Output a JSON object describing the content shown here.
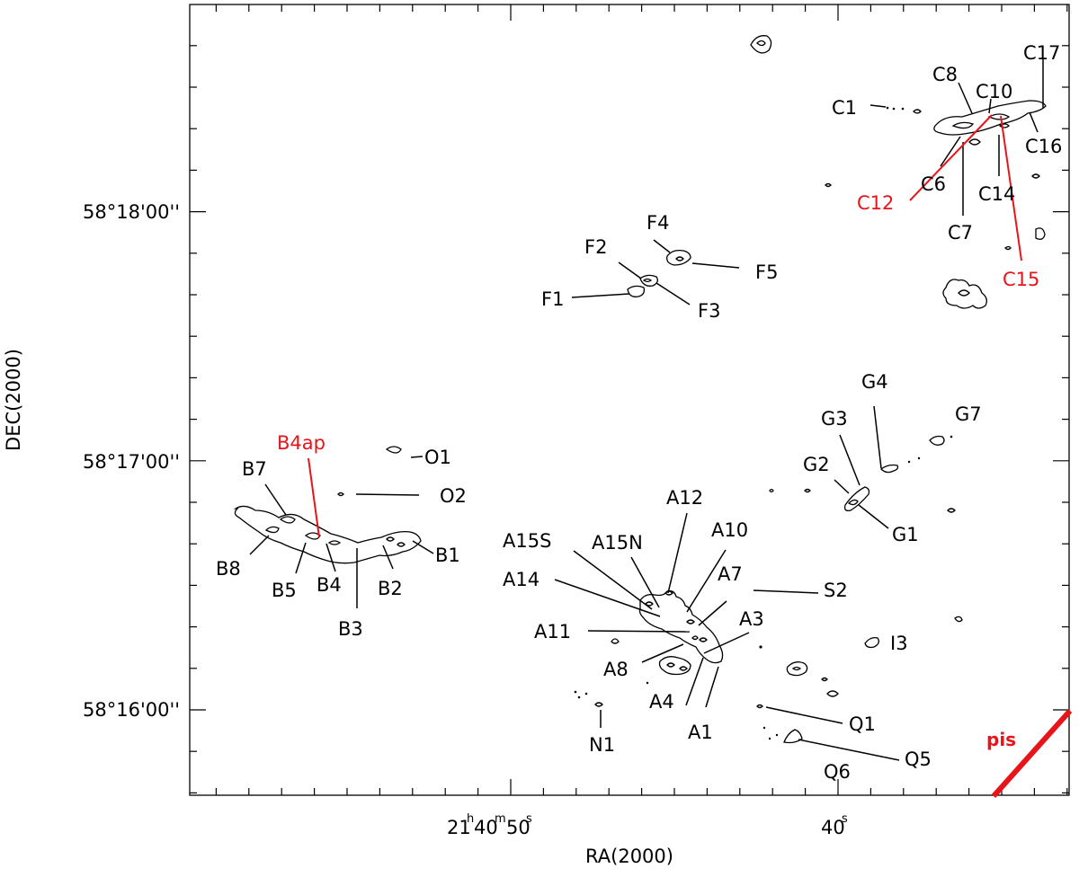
{
  "axes": {
    "xlabel": "RA(2000)",
    "ylabel": "DEC(2000)",
    "x_ticks": [
      {
        "h": "21",
        "m": "40",
        "s": "50",
        "format": "hms"
      },
      {
        "s": "40",
        "format": "s"
      }
    ],
    "y_ticks": [
      {
        "label": "58°18'00''"
      },
      {
        "label": "58°17'00''"
      },
      {
        "label": "58°16'00''"
      }
    ]
  },
  "colors": {
    "highlight": "#e8141a",
    "ink": "#000000"
  },
  "pis_label": "pis",
  "labels": {
    "C1": "C1",
    "C8": "C8",
    "C10": "C10",
    "C17": "C17",
    "C16": "C16",
    "C6": "C6",
    "C12": "C12",
    "C14": "C14",
    "C7": "C7",
    "C15": "C15",
    "F4": "F4",
    "F2": "F2",
    "F5": "F5",
    "F1": "F1",
    "F3": "F3",
    "G4": "G4",
    "G7": "G7",
    "G3": "G3",
    "G2": "G2",
    "G1": "G1",
    "B4ap": "B4ap",
    "B7": "B7",
    "O1": "O1",
    "O2": "O2",
    "B1": "B1",
    "B8": "B8",
    "B5": "B5",
    "B4": "B4",
    "B2": "B2",
    "B3": "B3",
    "A12": "A12",
    "A15S": "A15S",
    "A15N": "A15N",
    "A10": "A10",
    "A14": "A14",
    "A7": "A7",
    "S2": "S2",
    "A11": "A11",
    "A3": "A3",
    "I3": "I3",
    "A8": "A8",
    "A4": "A4",
    "A1": "A1",
    "N1": "N1",
    "Q1": "Q1",
    "Q5": "Q5",
    "Q6": "Q6"
  }
}
